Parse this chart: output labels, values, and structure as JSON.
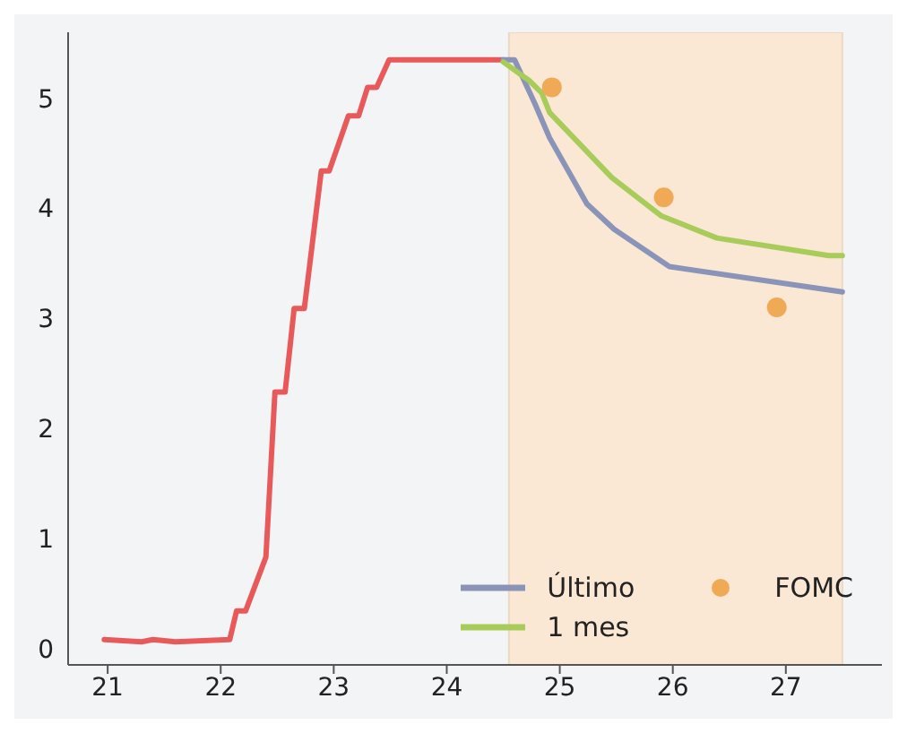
{
  "chart_data": {
    "type": "line",
    "xlim": [
      20.65,
      27.85
    ],
    "xticks": [
      21,
      22,
      23,
      24,
      25,
      26,
      27
    ],
    "ylim": [
      -0.15,
      5.6
    ],
    "yticks": [
      0,
      1,
      2,
      3,
      4,
      5
    ],
    "grid": false,
    "legend": "bottom right",
    "bands": [
      {
        "axis": "x",
        "from": 24.55,
        "to": 27.5,
        "color": "#fae8d5"
      }
    ],
    "series": [
      {
        "color": "#e85a5a",
        "x": [
          20.97,
          21.3,
          21.4,
          21.6,
          22.08,
          22.14,
          22.22,
          22.4,
          22.48,
          22.57,
          22.65,
          22.74,
          22.89,
          22.96,
          23.13,
          23.22,
          23.3,
          23.38,
          23.49,
          24.5
        ],
        "values": [
          0.08,
          0.06,
          0.08,
          0.06,
          0.08,
          0.34,
          0.34,
          0.83,
          2.33,
          2.33,
          3.09,
          3.09,
          4.34,
          4.34,
          4.84,
          4.84,
          5.1,
          5.1,
          5.35,
          5.35
        ]
      },
      {
        "name": "Último",
        "color": "#8a94b8",
        "x": [
          24.5,
          24.6,
          24.78,
          24.91,
          25.24,
          25.48,
          25.97,
          27.5
        ],
        "values": [
          5.35,
          5.35,
          4.95,
          4.64,
          4.04,
          3.81,
          3.47,
          3.24
        ]
      },
      {
        "name": "1 mes",
        "color": "#a8cc5a",
        "x": [
          24.5,
          24.73,
          24.84,
          24.91,
          25.46,
          25.9,
          26.39,
          27.38,
          27.5
        ],
        "values": [
          5.33,
          5.16,
          5.05,
          4.87,
          4.28,
          3.93,
          3.73,
          3.57,
          3.57
        ]
      },
      {
        "name": "FOMC",
        "type": "scatter",
        "color": "#f0aa55",
        "x": [
          24.93,
          25.92,
          26.92
        ],
        "values": [
          5.1,
          4.1,
          3.1
        ]
      }
    ]
  }
}
